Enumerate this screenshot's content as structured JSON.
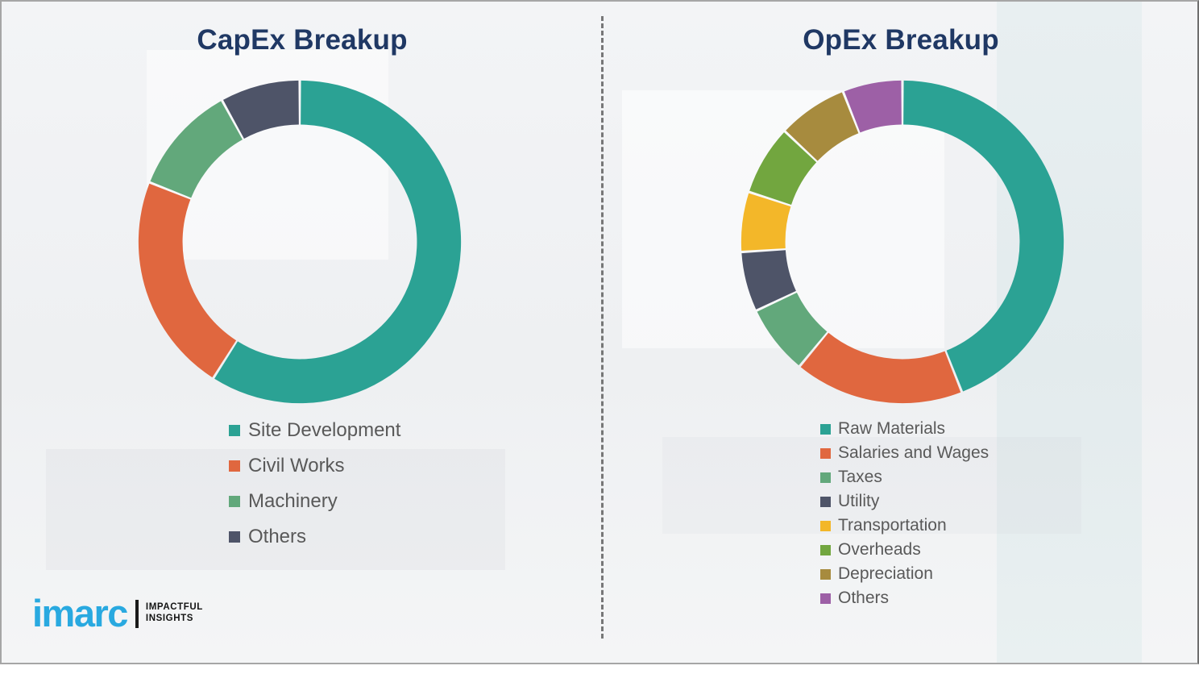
{
  "page": {
    "background_color": "#f1f2f4",
    "frame_border_color": "#a6a6a6",
    "divider_color": "#595959",
    "title_color": "#1f3864",
    "legend_text_color": "#595959"
  },
  "logo": {
    "brand": "imarc",
    "brand_color": "#29a9e0",
    "tagline_line1": "IMPACTFUL",
    "tagline_line2": "INSIGHTS"
  },
  "chart_data": [
    {
      "type": "pie",
      "variant": "donut",
      "title": "CapEx Breakup",
      "title_color": "#1f3864",
      "categories": [
        "Site Development",
        "Civil Works",
        "Machinery",
        "Others"
      ],
      "values": [
        59,
        22,
        11,
        8
      ],
      "colors": [
        "#2ba294",
        "#e0673f",
        "#62a87b",
        "#4e5468"
      ],
      "unit": "percent_estimated",
      "start_angle_deg": 0,
      "clockwise": true,
      "legend_position": "bottom-left",
      "legend_text_color": "#595959"
    },
    {
      "type": "pie",
      "variant": "donut",
      "title": "OpEx Breakup",
      "title_color": "#1f3864",
      "categories": [
        "Raw Materials",
        "Salaries and Wages",
        "Taxes",
        "Utility",
        "Transportation",
        "Overheads",
        "Depreciation",
        "Others"
      ],
      "values": [
        44,
        17,
        7,
        6,
        6,
        7,
        7,
        6
      ],
      "colors": [
        "#2ba294",
        "#e0673f",
        "#62a87b",
        "#4e5468",
        "#f3b729",
        "#72a63f",
        "#a78b3e",
        "#9d60a6"
      ],
      "unit": "percent_estimated",
      "start_angle_deg": 0,
      "clockwise": true,
      "legend_position": "bottom-left",
      "legend_text_color": "#595959"
    }
  ]
}
